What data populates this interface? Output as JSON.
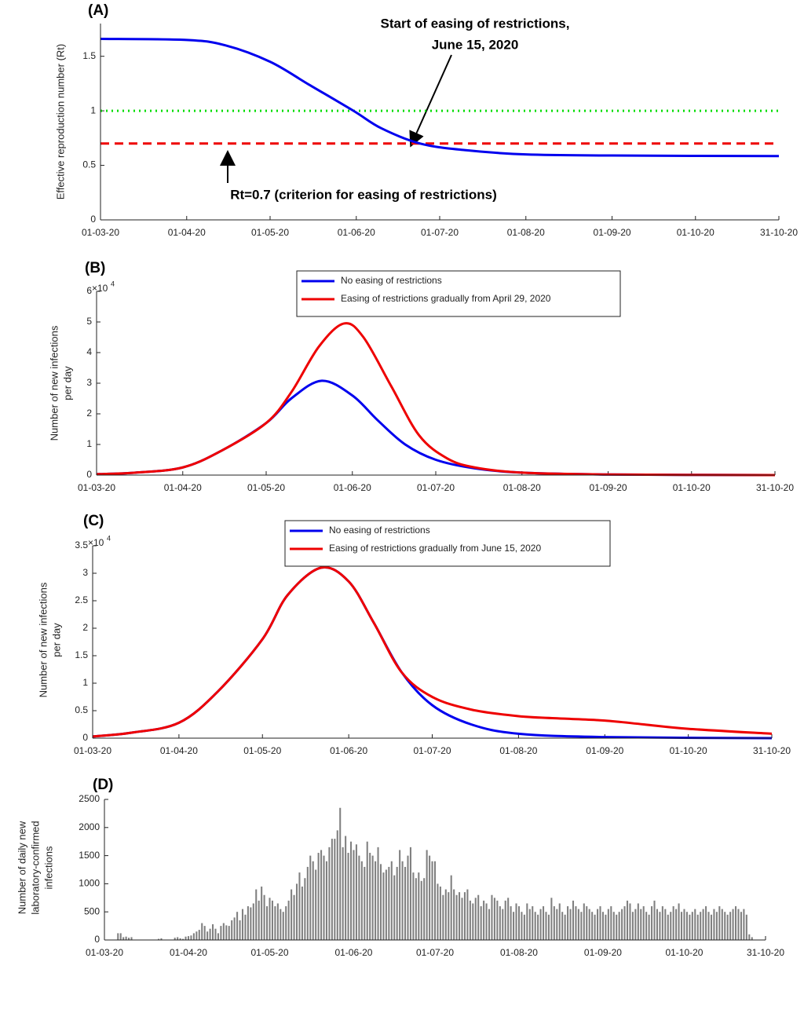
{
  "chart_data": [
    {
      "type": "line",
      "title": "(A)",
      "xlim": [
        "2020-03-01",
        "2020-10-31"
      ],
      "xticks": [
        {
          "value": "2020-03-01",
          "label": "01-03-20"
        },
        {
          "value": "2020-04-01",
          "label": "01-04-20"
        },
        {
          "value": "2020-05-01",
          "label": "01-05-20"
        },
        {
          "value": "2020-06-01",
          "label": "01-06-20"
        },
        {
          "value": "2020-07-01",
          "label": "01-07-20"
        },
        {
          "value": "2020-08-01",
          "label": "01-08-20"
        },
        {
          "value": "2020-09-01",
          "label": "01-09-20"
        },
        {
          "value": "2020-10-01",
          "label": "01-10-20"
        },
        {
          "value": "2020-10-31",
          "label": "31-10-20"
        }
      ],
      "ylim": [
        0,
        1.8
      ],
      "yticks": [
        0,
        0.5,
        1,
        1.5
      ],
      "ylabel": [
        "Effective reproduction number (Rt)"
      ],
      "annotations": [
        "Start of easing of restrictions,",
        "June 15, 2020",
        "Rt=0.7 (criterion for easing of restrictions)"
      ],
      "series": [
        {
          "color": "#00dd00",
          "dash": "dotted",
          "x": [
            "2020-03-01",
            "2020-10-31"
          ],
          "values": [
            1,
            1
          ]
        },
        {
          "color": "#ee0000",
          "dash": "dashed",
          "x": [
            "2020-03-01",
            "2020-10-31"
          ],
          "values": [
            0.7,
            0.7
          ]
        },
        {
          "color": "#0000ee",
          "dash": "solid",
          "x": [
            "2020-03-01",
            "2020-04-01",
            "2020-04-15",
            "2020-05-01",
            "2020-05-15",
            "2020-05-31",
            "2020-06-10",
            "2020-06-24",
            "2020-07-10",
            "2020-08-01",
            "2020-09-01",
            "2020-10-31"
          ],
          "values": [
            1.66,
            1.65,
            1.6,
            1.45,
            1.24,
            1.0,
            0.84,
            0.7,
            0.64,
            0.6,
            0.59,
            0.585
          ]
        }
      ]
    },
    {
      "type": "line",
      "title": "(B)",
      "xlim": [
        "2020-03-01",
        "2020-10-31"
      ],
      "xticks": [
        {
          "value": "2020-03-01",
          "label": "01-03-20"
        },
        {
          "value": "2020-04-01",
          "label": "01-04-20"
        },
        {
          "value": "2020-05-01",
          "label": "01-05-20"
        },
        {
          "value": "2020-06-01",
          "label": "01-06-20"
        },
        {
          "value": "2020-07-01",
          "label": "01-07-20"
        },
        {
          "value": "2020-08-01",
          "label": "01-08-20"
        },
        {
          "value": "2020-09-01",
          "label": "01-09-20"
        },
        {
          "value": "2020-10-01",
          "label": "01-10-20"
        },
        {
          "value": "2020-10-31",
          "label": "31-10-20"
        }
      ],
      "ylim": [
        0,
        6
      ],
      "yticks": [
        0,
        1,
        2,
        3,
        4,
        5,
        6
      ],
      "yscale_label": "×10",
      "yscale_exponent": "4",
      "ylabel": [
        "Number of new infections",
        "per day"
      ],
      "legend": "upper center",
      "series": [
        {
          "name": "No easing of restrictions",
          "color": "#0000ee",
          "dash": "solid",
          "x": [
            "2020-03-01",
            "2020-03-15",
            "2020-04-01",
            "2020-04-15",
            "2020-05-01",
            "2020-05-10",
            "2020-05-21",
            "2020-06-01",
            "2020-06-10",
            "2020-06-20",
            "2020-07-01",
            "2020-07-15",
            "2020-08-01",
            "2020-09-01",
            "2020-10-31"
          ],
          "values": [
            0.03,
            0.08,
            0.25,
            0.8,
            1.7,
            2.5,
            3.08,
            2.6,
            1.8,
            1.0,
            0.5,
            0.22,
            0.08,
            0.02,
            0
          ]
        },
        {
          "name": "Easing of restrictions gradually from April 29, 2020",
          "color": "#ee0000",
          "dash": "solid",
          "x": [
            "2020-03-01",
            "2020-03-15",
            "2020-04-01",
            "2020-04-15",
            "2020-05-01",
            "2020-05-10",
            "2020-05-20",
            "2020-05-29",
            "2020-06-05",
            "2020-06-15",
            "2020-06-25",
            "2020-07-05",
            "2020-07-15",
            "2020-08-01",
            "2020-09-01",
            "2020-10-31"
          ],
          "values": [
            0.03,
            0.08,
            0.25,
            0.8,
            1.7,
            2.7,
            4.2,
            4.95,
            4.5,
            2.9,
            1.3,
            0.55,
            0.25,
            0.08,
            0.02,
            0
          ]
        }
      ]
    },
    {
      "type": "line",
      "title": "(C)",
      "xlim": [
        "2020-03-01",
        "2020-10-31"
      ],
      "xticks": [
        {
          "value": "2020-03-01",
          "label": "01-03-20"
        },
        {
          "value": "2020-04-01",
          "label": "01-04-20"
        },
        {
          "value": "2020-05-01",
          "label": "01-05-20"
        },
        {
          "value": "2020-06-01",
          "label": "01-06-20"
        },
        {
          "value": "2020-07-01",
          "label": "01-07-20"
        },
        {
          "value": "2020-08-01",
          "label": "01-08-20"
        },
        {
          "value": "2020-09-01",
          "label": "01-09-20"
        },
        {
          "value": "2020-10-01",
          "label": "01-10-20"
        },
        {
          "value": "2020-10-31",
          "label": "31-10-20"
        }
      ],
      "ylim": [
        0,
        3.5
      ],
      "yticks": [
        0,
        0.5,
        1,
        1.5,
        2,
        2.5,
        3,
        3.5
      ],
      "yscale_label": "×10",
      "yscale_exponent": "4",
      "ylabel": [
        "Number of new infections",
        "per day"
      ],
      "legend": "upper center",
      "series": [
        {
          "name": "No easing of restrictions",
          "color": "#0000ee",
          "dash": "solid",
          "x": [
            "2020-03-01",
            "2020-03-15",
            "2020-04-01",
            "2020-04-15",
            "2020-05-01",
            "2020-05-10",
            "2020-05-22",
            "2020-06-01",
            "2020-06-10",
            "2020-06-20",
            "2020-07-01",
            "2020-07-15",
            "2020-08-01",
            "2020-09-01",
            "2020-10-31"
          ],
          "values": [
            0.03,
            0.1,
            0.28,
            0.85,
            1.8,
            2.6,
            3.1,
            2.85,
            2.1,
            1.2,
            0.6,
            0.25,
            0.08,
            0.02,
            0
          ]
        },
        {
          "name": "Easing of restrictions gradually from June 15, 2020",
          "color": "#ee0000",
          "dash": "solid",
          "x": [
            "2020-03-01",
            "2020-03-15",
            "2020-04-01",
            "2020-04-15",
            "2020-05-01",
            "2020-05-10",
            "2020-05-22",
            "2020-06-01",
            "2020-06-10",
            "2020-06-20",
            "2020-07-01",
            "2020-07-15",
            "2020-08-01",
            "2020-08-15",
            "2020-09-01",
            "2020-09-15",
            "2020-10-01",
            "2020-10-31"
          ],
          "values": [
            0.03,
            0.1,
            0.28,
            0.85,
            1.8,
            2.6,
            3.1,
            2.85,
            2.1,
            1.2,
            0.75,
            0.52,
            0.4,
            0.36,
            0.32,
            0.25,
            0.17,
            0.08
          ]
        }
      ]
    },
    {
      "type": "bar",
      "title": "(D)",
      "xlim": [
        "2020-03-01",
        "2020-10-31"
      ],
      "xticks": [
        {
          "value": "2020-03-01",
          "label": "01-03-20"
        },
        {
          "value": "2020-04-01",
          "label": "01-04-20"
        },
        {
          "value": "2020-05-01",
          "label": "01-05-20"
        },
        {
          "value": "2020-06-01",
          "label": "01-06-20"
        },
        {
          "value": "2020-07-01",
          "label": "01-07-20"
        },
        {
          "value": "2020-08-01",
          "label": "01-08-20"
        },
        {
          "value": "2020-09-01",
          "label": "01-09-20"
        },
        {
          "value": "2020-10-01",
          "label": "01-10-20"
        },
        {
          "value": "2020-10-31",
          "label": "31-10-20"
        }
      ],
      "ylim": [
        0,
        2500
      ],
      "yticks": [
        0,
        500,
        1000,
        1500,
        2000,
        2500
      ],
      "ylabel": [
        "Number of daily new",
        "laboratory-confirmed",
        "infections"
      ],
      "color": "#808080",
      "x": [
        "2020-03-01",
        "2020-03-02",
        "2020-03-03",
        "2020-03-04",
        "2020-03-05",
        "2020-03-06",
        "2020-03-07",
        "2020-03-08",
        "2020-03-09",
        "2020-03-10",
        "2020-03-11",
        "2020-03-12",
        "2020-03-13",
        "2020-03-14",
        "2020-03-15",
        "2020-03-16",
        "2020-03-17",
        "2020-03-18",
        "2020-03-19",
        "2020-03-20",
        "2020-03-21",
        "2020-03-22",
        "2020-03-23",
        "2020-03-24",
        "2020-03-25",
        "2020-03-26",
        "2020-03-27",
        "2020-03-28",
        "2020-03-29",
        "2020-03-30",
        "2020-03-31",
        "2020-04-01",
        "2020-04-02",
        "2020-04-03",
        "2020-04-04",
        "2020-04-05",
        "2020-04-06",
        "2020-04-07",
        "2020-04-08",
        "2020-04-09",
        "2020-04-10",
        "2020-04-11",
        "2020-04-12",
        "2020-04-13",
        "2020-04-14",
        "2020-04-15",
        "2020-04-16",
        "2020-04-17",
        "2020-04-18",
        "2020-04-19",
        "2020-04-20",
        "2020-04-21",
        "2020-04-22",
        "2020-04-23",
        "2020-04-24",
        "2020-04-25",
        "2020-04-26",
        "2020-04-27",
        "2020-04-28",
        "2020-04-29",
        "2020-04-30",
        "2020-05-01",
        "2020-05-02",
        "2020-05-03",
        "2020-05-04",
        "2020-05-05",
        "2020-05-06",
        "2020-05-07",
        "2020-05-08",
        "2020-05-09",
        "2020-05-10",
        "2020-05-11",
        "2020-05-12",
        "2020-05-13",
        "2020-05-14",
        "2020-05-15",
        "2020-05-16",
        "2020-05-17",
        "2020-05-18",
        "2020-05-19",
        "2020-05-20",
        "2020-05-21",
        "2020-05-22",
        "2020-05-23",
        "2020-05-24",
        "2020-05-25",
        "2020-05-26",
        "2020-05-27",
        "2020-05-28",
        "2020-05-29",
        "2020-05-30",
        "2020-05-31",
        "2020-06-01",
        "2020-06-02",
        "2020-06-03",
        "2020-06-04",
        "2020-06-05",
        "2020-06-06",
        "2020-06-07",
        "2020-06-08",
        "2020-06-09",
        "2020-06-10",
        "2020-06-11",
        "2020-06-12",
        "2020-06-13",
        "2020-06-14",
        "2020-06-15",
        "2020-06-16",
        "2020-06-17",
        "2020-06-18",
        "2020-06-19",
        "2020-06-20",
        "2020-06-21",
        "2020-06-22",
        "2020-06-23",
        "2020-06-24",
        "2020-06-25",
        "2020-06-26",
        "2020-06-27",
        "2020-06-28",
        "2020-06-29",
        "2020-06-30",
        "2020-07-01",
        "2020-07-02",
        "2020-07-03",
        "2020-07-04",
        "2020-07-05",
        "2020-07-06",
        "2020-07-07",
        "2020-07-08",
        "2020-07-09",
        "2020-07-10",
        "2020-07-11",
        "2020-07-12",
        "2020-07-13",
        "2020-07-14",
        "2020-07-15",
        "2020-07-16",
        "2020-07-17",
        "2020-07-18",
        "2020-07-19",
        "2020-07-20",
        "2020-07-21",
        "2020-07-22",
        "2020-07-23",
        "2020-07-24",
        "2020-07-25",
        "2020-07-26",
        "2020-07-27",
        "2020-07-28",
        "2020-07-29",
        "2020-07-30",
        "2020-07-31",
        "2020-08-01",
        "2020-08-02",
        "2020-08-03",
        "2020-08-04",
        "2020-08-05",
        "2020-08-06",
        "2020-08-07",
        "2020-08-08",
        "2020-08-09",
        "2020-08-10",
        "2020-08-11",
        "2020-08-12",
        "2020-08-13",
        "2020-08-14",
        "2020-08-15",
        "2020-08-16",
        "2020-08-17",
        "2020-08-18",
        "2020-08-19",
        "2020-08-20",
        "2020-08-21",
        "2020-08-22",
        "2020-08-23",
        "2020-08-24",
        "2020-08-25",
        "2020-08-26",
        "2020-08-27",
        "2020-08-28",
        "2020-08-29",
        "2020-08-30",
        "2020-08-31",
        "2020-09-01",
        "2020-09-02",
        "2020-09-03",
        "2020-09-04",
        "2020-09-05",
        "2020-09-06",
        "2020-09-07",
        "2020-09-08",
        "2020-09-09",
        "2020-09-10",
        "2020-09-11",
        "2020-09-12",
        "2020-09-13",
        "2020-09-14",
        "2020-09-15",
        "2020-09-16",
        "2020-09-17",
        "2020-09-18",
        "2020-09-19",
        "2020-09-20",
        "2020-09-21",
        "2020-09-22",
        "2020-09-23",
        "2020-09-24",
        "2020-09-25",
        "2020-09-26",
        "2020-09-27",
        "2020-09-28",
        "2020-09-29",
        "2020-09-30",
        "2020-10-01",
        "2020-10-02",
        "2020-10-03",
        "2020-10-04",
        "2020-10-05",
        "2020-10-06",
        "2020-10-07",
        "2020-10-08",
        "2020-10-09",
        "2020-10-10",
        "2020-10-11",
        "2020-10-12",
        "2020-10-13",
        "2020-10-14",
        "2020-10-15",
        "2020-10-16",
        "2020-10-17",
        "2020-10-18",
        "2020-10-19",
        "2020-10-20",
        "2020-10-21",
        "2020-10-22",
        "2020-10-23",
        "2020-10-24",
        "2020-10-25",
        "2020-10-26"
      ],
      "values": [
        0,
        0,
        0,
        0,
        0,
        120,
        120,
        50,
        60,
        40,
        50,
        0,
        0,
        0,
        0,
        0,
        0,
        0,
        0,
        0,
        20,
        30,
        0,
        0,
        0,
        0,
        40,
        50,
        30,
        20,
        60,
        60,
        80,
        120,
        150,
        180,
        300,
        250,
        150,
        200,
        280,
        200,
        120,
        250,
        300,
        260,
        250,
        350,
        400,
        500,
        350,
        550,
        450,
        600,
        580,
        650,
        900,
        700,
        950,
        800,
        600,
        750,
        700,
        600,
        650,
        550,
        500,
        600,
        700,
        900,
        800,
        1000,
        1200,
        950,
        1100,
        1300,
        1500,
        1400,
        1250,
        1550,
        1600,
        1500,
        1400,
        1650,
        1800,
        1800,
        1950,
        2350,
        1650,
        1850,
        1550,
        1750,
        1600,
        1700,
        1500,
        1400,
        1300,
        1750,
        1550,
        1500,
        1400,
        1650,
        1350,
        1200,
        1250,
        1300,
        1400,
        1150,
        1300,
        1600,
        1400,
        1300,
        1500,
        1650,
        1200,
        1100,
        1200,
        1050,
        1100,
        1600,
        1500,
        1400,
        1400,
        1000,
        950,
        800,
        900,
        850,
        1150,
        900,
        800,
        850,
        750,
        850,
        900,
        700,
        650,
        750,
        800,
        600,
        700,
        650,
        550,
        800,
        750,
        700,
        600,
        550,
        700,
        750,
        600,
        500,
        650,
        600,
        500,
        450,
        650,
        550,
        600,
        500,
        450,
        550,
        600,
        500,
        450,
        750,
        600,
        550,
        650,
        500,
        450,
        600,
        550,
        700,
        600,
        550,
        500,
        650,
        600,
        550,
        500,
        450,
        550,
        600,
        500,
        450,
        550,
        600,
        500,
        450,
        500,
        550,
        600,
        700,
        650,
        500,
        550,
        650,
        550,
        600,
        500,
        450,
        600,
        700,
        550,
        500,
        600,
        550,
        450,
        500,
        600,
        550,
        650,
        500,
        550,
        500,
        450,
        500,
        550,
        450,
        500,
        550,
        600,
        500,
        450,
        550,
        500,
        600,
        550,
        500,
        450,
        500,
        550,
        600,
        550,
        500,
        550,
        450,
        100,
        50
      ]
    }
  ]
}
